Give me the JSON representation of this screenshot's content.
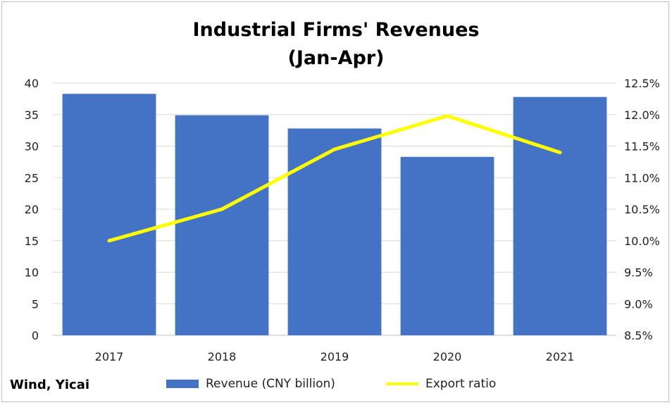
{
  "chart_data": {
    "type": "bar",
    "title": "Industrial Firms' Revenues",
    "subtitle": "(Jan-Apr)",
    "categories": [
      "2017",
      "2018",
      "2019",
      "2020",
      "2021"
    ],
    "series": [
      {
        "name": "Revenue (CNY billion)",
        "type": "bar",
        "axis": "left",
        "color": "#4472c4",
        "values": [
          38.3,
          34.9,
          32.8,
          28.3,
          37.8
        ]
      },
      {
        "name": "Export ratio",
        "type": "line",
        "axis": "right",
        "color": "#ffff00",
        "values": [
          10.0,
          10.5,
          11.45,
          11.98,
          11.4
        ]
      }
    ],
    "y_left": {
      "ylim": [
        0,
        40
      ],
      "ticks": [
        "0",
        "5",
        "10",
        "15",
        "20",
        "25",
        "30",
        "35",
        "40"
      ]
    },
    "y_right": {
      "ylim": [
        8.5,
        12.5
      ],
      "ticks": [
        "8.5%",
        "9.0%",
        "9.5%",
        "10.0%",
        "10.5%",
        "11.0%",
        "11.5%",
        "12.0%",
        "12.5%"
      ]
    },
    "grid": true,
    "legend": "bottom",
    "source": "Wind, Yicai"
  }
}
